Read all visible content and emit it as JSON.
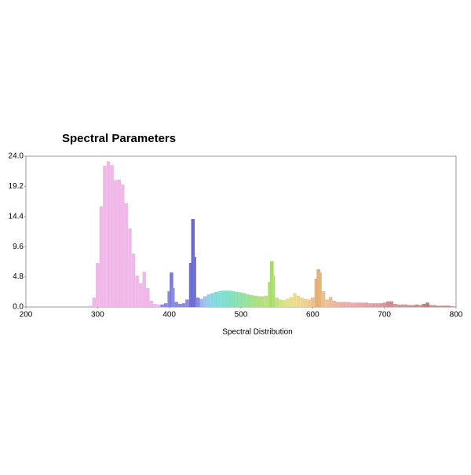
{
  "chart_data": {
    "type": "spectrum",
    "title": "Spectral Parameters",
    "x_label": "Spectral Distribution",
    "x": [
      285,
      290,
      295,
      300,
      305,
      310,
      315,
      320,
      325,
      330,
      335,
      340,
      345,
      350,
      355,
      360,
      365,
      370,
      375,
      380,
      385,
      390,
      395,
      400,
      403,
      405,
      410,
      415,
      420,
      425,
      430,
      433,
      435,
      440,
      445,
      450,
      455,
      460,
      465,
      470,
      475,
      480,
      485,
      490,
      495,
      500,
      505,
      510,
      515,
      520,
      525,
      530,
      535,
      540,
      543,
      545,
      550,
      555,
      560,
      565,
      570,
      575,
      580,
      585,
      590,
      595,
      600,
      605,
      608,
      610,
      615,
      620,
      625,
      630,
      635,
      640,
      645,
      650,
      655,
      660,
      665,
      670,
      675,
      680,
      685,
      690,
      695,
      700,
      705,
      710,
      715,
      720,
      725,
      730,
      735,
      740,
      745,
      750,
      755,
      760,
      765,
      770,
      775,
      780,
      785,
      790,
      795
    ],
    "values": [
      0,
      0.2,
      1.5,
      7,
      16,
      22.5,
      23.2,
      22.6,
      20.2,
      20.3,
      19.5,
      16.5,
      12.5,
      8.5,
      5,
      3.8,
      5.6,
      3,
      1,
      0.5,
      0.4,
      0.4,
      0.6,
      2.5,
      5.5,
      3,
      0.8,
      0.5,
      0.6,
      1.2,
      7,
      14,
      8,
      1.5,
      1.3,
      1.7,
      2,
      2.2,
      2.4,
      2.5,
      2.6,
      2.6,
      2.6,
      2.5,
      2.4,
      2.3,
      2.2,
      2,
      1.9,
      1.8,
      1.7,
      1.7,
      1.8,
      4,
      7.3,
      5,
      1.5,
      1.2,
      1.1,
      1.3,
      1.6,
      2.2,
      1.8,
      1.5,
      1.3,
      1.2,
      1.5,
      4.5,
      6,
      5.5,
      2.5,
      1.2,
      1.6,
      1,
      0.8,
      0.8,
      0.8,
      0.8,
      0.7,
      0.7,
      0.7,
      0.7,
      0.7,
      0.6,
      0.6,
      0.6,
      0.6,
      0.7,
      0.9,
      0.9,
      0.5,
      0.4,
      0.4,
      0.4,
      0.3,
      0.3,
      0.4,
      0.3,
      0.5,
      0.7,
      0.3,
      0.3,
      0.2,
      0.2,
      0.2,
      0.2,
      0.1
    ],
    "colors": [
      "#f0b8e8",
      "#f0b8e8",
      "#f0b8e8",
      "#f0b8e8",
      "#f0b8e8",
      "#f0b8e8",
      "#f0b8e8",
      "#f0b8e8",
      "#f0b8e8",
      "#f0b8e8",
      "#f0b8e8",
      "#f0b8e8",
      "#f0b8e8",
      "#f0b8e8",
      "#f0b8e8",
      "#f0b8e8",
      "#f0b8e8",
      "#f0b8e8",
      "#f0b8e8",
      "#f0b8e8",
      "#f0b8e8",
      "#8a8ae0",
      "#8a8ae0",
      "#8a8ae0",
      "#7a7ad8",
      "#8a8ae0",
      "#8a8ae0",
      "#8a8ae0",
      "#8a8ae0",
      "#8a8ae0",
      "#7070d8",
      "#6a6ad0",
      "#7070d8",
      "#8a8ae0",
      "#9ab8e8",
      "#9ac4e8",
      "#90d0e8",
      "#88d8e4",
      "#80dcdc",
      "#80e0d8",
      "#80e0d0",
      "#80e0c8",
      "#84e0c0",
      "#88e0b8",
      "#8ce0b0",
      "#90e0a8",
      "#96e0a0",
      "#9ce098",
      "#a4e090",
      "#aae088",
      "#b0e080",
      "#b6e080",
      "#bce080",
      "#b0e070",
      "#a8d868",
      "#b0e070",
      "#c4e080",
      "#d4e088",
      "#dce088",
      "#e0e088",
      "#e6e08c",
      "#ecdc8c",
      "#eed890",
      "#eed490",
      "#eed090",
      "#eecc90",
      "#eac090",
      "#e6b478",
      "#e4ae70",
      "#e6b478",
      "#eac090",
      "#ecc098",
      "#ecba98",
      "#ecb8a0",
      "#ecb4a0",
      "#e8b0a8",
      "#e8b0a8",
      "#e8b0a8",
      "#e8aca8",
      "#e8aca8",
      "#e4a8a8",
      "#e4a8a8",
      "#e0a4a4",
      "#e0a4a4",
      "#dca0a0",
      "#dca0a0",
      "#d89c9c",
      "#d49898",
      "#cc9090",
      "#cc9090",
      "#d09898",
      "#d09898",
      "#cc9898",
      "#cc9898",
      "#c89494",
      "#c89494",
      "#c49090",
      "#c49090",
      "#b88484",
      "#b07c7c",
      "#c49090",
      "#c49090",
      "#c09090",
      "#c09090",
      "#bc8c8c",
      "#bc8c8c",
      "#b88888"
    ],
    "xlim": [
      200,
      800
    ],
    "xticks": [
      200,
      300,
      400,
      500,
      600,
      700,
      800
    ],
    "ylim": [
      0,
      24
    ],
    "yticks": [
      {
        "value": 0,
        "label": "0.0"
      },
      4.8,
      9.6,
      14.4,
      19.2,
      {
        "value": 24,
        "label": "24.0"
      }
    ]
  }
}
